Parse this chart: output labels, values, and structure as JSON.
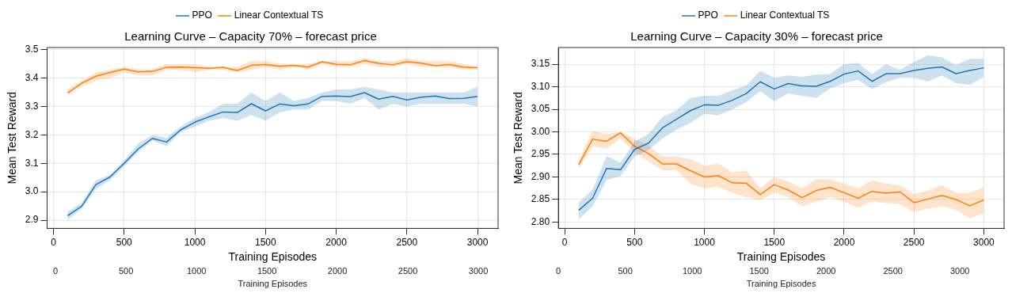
{
  "chart_data": [
    {
      "type": "line",
      "title": "Learning Curve – Capacity 70% – forecast price",
      "xlabel": "Training Episodes",
      "ylabel": "Mean Test Reward",
      "x2label": "Training Episodes",
      "x": [
        100,
        200,
        300,
        400,
        500,
        600,
        700,
        800,
        900,
        1000,
        1100,
        1200,
        1300,
        1400,
        1500,
        1600,
        1700,
        1800,
        1900,
        2000,
        2100,
        2200,
        2300,
        2400,
        2500,
        2600,
        2700,
        2800,
        2900,
        3000
      ],
      "series": [
        {
          "name": "PPO",
          "color": "#1f77b4",
          "values": [
            2.916,
            2.949,
            3.025,
            3.052,
            3.1,
            3.151,
            3.188,
            3.175,
            3.218,
            3.245,
            3.264,
            3.281,
            3.279,
            3.31,
            3.285,
            3.309,
            3.303,
            3.309,
            3.336,
            3.337,
            3.335,
            3.349,
            3.326,
            3.336,
            3.323,
            3.333,
            3.337,
            3.328,
            3.329,
            3.336
          ],
          "lower": [
            2.9,
            2.94,
            3.01,
            3.04,
            3.09,
            3.14,
            3.18,
            3.16,
            3.21,
            3.23,
            3.25,
            3.26,
            3.25,
            3.27,
            3.25,
            3.28,
            3.29,
            3.29,
            3.32,
            3.32,
            3.31,
            3.33,
            3.29,
            3.31,
            3.3,
            3.31,
            3.31,
            3.31,
            3.31,
            3.3
          ],
          "upper": [
            2.93,
            2.96,
            3.04,
            3.06,
            3.11,
            3.17,
            3.2,
            3.19,
            3.23,
            3.26,
            3.28,
            3.31,
            3.31,
            3.35,
            3.32,
            3.35,
            3.32,
            3.33,
            3.35,
            3.36,
            3.36,
            3.37,
            3.36,
            3.35,
            3.35,
            3.35,
            3.35,
            3.35,
            3.35,
            3.37
          ]
        },
        {
          "name": "Linear Contextual TS",
          "color": "#ff7f0e",
          "values": [
            3.348,
            3.382,
            3.407,
            3.42,
            3.432,
            3.422,
            3.424,
            3.438,
            3.439,
            3.437,
            3.435,
            3.438,
            3.427,
            3.445,
            3.448,
            3.442,
            3.445,
            3.439,
            3.458,
            3.449,
            3.447,
            3.462,
            3.452,
            3.447,
            3.458,
            3.453,
            3.444,
            3.448,
            3.439,
            3.437
          ],
          "lower": [
            3.34,
            3.37,
            3.39,
            3.4,
            3.42,
            3.41,
            3.41,
            3.43,
            3.43,
            3.42,
            3.43,
            3.43,
            3.42,
            3.43,
            3.44,
            3.43,
            3.44,
            3.43,
            3.45,
            3.44,
            3.44,
            3.45,
            3.44,
            3.44,
            3.45,
            3.44,
            3.44,
            3.44,
            3.43,
            3.43
          ],
          "upper": [
            3.36,
            3.39,
            3.42,
            3.43,
            3.44,
            3.43,
            3.43,
            3.45,
            3.45,
            3.45,
            3.44,
            3.44,
            3.44,
            3.46,
            3.46,
            3.45,
            3.45,
            3.45,
            3.46,
            3.46,
            3.46,
            3.47,
            3.46,
            3.46,
            3.47,
            3.46,
            3.46,
            3.46,
            3.45,
            3.44
          ]
        }
      ],
      "xlim": [
        -45,
        3145
      ],
      "xticks": [
        0,
        500,
        1000,
        1500,
        2000,
        2500,
        3000
      ],
      "x2lim": [
        -60,
        3140
      ],
      "x2ticks": [
        0,
        500,
        1000,
        1500,
        2000,
        2500,
        3000
      ],
      "ylim": [
        2.871,
        3.508
      ],
      "yticks": [
        2.9,
        {
          "value": 3,
          "label": "3.0"
        },
        3.1,
        3.2,
        3.3,
        3.4,
        3.5
      ],
      "grid": true,
      "legend": "top",
      "marker": "none",
      "line_style": "solid"
    },
    {
      "type": "line",
      "title": "Learning Curve – Capacity 30% – forecast price",
      "xlabel": "Training Episodes",
      "ylabel": "Mean Test Reward",
      "x2label": "Training Episodes",
      "x": [
        100,
        200,
        300,
        400,
        500,
        600,
        700,
        800,
        900,
        1000,
        1100,
        1200,
        1300,
        1400,
        1500,
        1600,
        1700,
        1800,
        1900,
        2000,
        2100,
        2200,
        2300,
        2400,
        2500,
        2600,
        2700,
        2800,
        2900,
        3000
      ],
      "series": [
        {
          "name": "PPO",
          "color": "#1f77b4",
          "values": [
            2.826,
            2.853,
            2.919,
            2.916,
            2.961,
            2.975,
            3.009,
            3.028,
            3.047,
            3.06,
            3.059,
            3.07,
            3.085,
            3.111,
            3.095,
            3.107,
            3.102,
            3.101,
            3.112,
            3.128,
            3.135,
            3.112,
            3.129,
            3.129,
            3.136,
            3.141,
            3.144,
            3.129,
            3.136,
            3.142
          ],
          "lower": [
            2.806,
            2.835,
            2.893,
            2.902,
            2.945,
            2.96,
            2.985,
            3.005,
            3.02,
            3.04,
            3.037,
            3.05,
            3.066,
            3.09,
            3.068,
            3.085,
            3.08,
            3.075,
            3.096,
            3.108,
            3.115,
            3.095,
            3.11,
            3.12,
            3.12,
            3.112,
            3.125,
            3.108,
            3.104,
            3.122
          ],
          "upper": [
            2.843,
            2.872,
            2.946,
            2.932,
            2.978,
            2.995,
            3.033,
            3.048,
            3.075,
            3.08,
            3.08,
            3.092,
            3.103,
            3.135,
            3.12,
            3.125,
            3.122,
            3.127,
            3.128,
            3.15,
            3.153,
            3.128,
            3.15,
            3.138,
            3.155,
            3.17,
            3.165,
            3.148,
            3.162,
            3.162
          ]
        },
        {
          "name": "Linear Contextual TS",
          "color": "#ff7f0e",
          "values": [
            2.927,
            2.984,
            2.979,
            2.998,
            2.968,
            2.952,
            2.929,
            2.929,
            2.914,
            2.9,
            2.903,
            2.887,
            2.886,
            2.861,
            2.883,
            2.871,
            2.854,
            2.87,
            2.877,
            2.865,
            2.853,
            2.868,
            2.864,
            2.867,
            2.843,
            2.851,
            2.859,
            2.85,
            2.836,
            2.849
          ],
          "lower": [
            2.918,
            2.968,
            2.963,
            2.985,
            2.955,
            2.935,
            2.915,
            2.915,
            2.885,
            2.875,
            2.878,
            2.865,
            2.855,
            2.848,
            2.865,
            2.855,
            2.835,
            2.845,
            2.855,
            2.845,
            2.832,
            2.845,
            2.842,
            2.84,
            2.822,
            2.83,
            2.835,
            2.828,
            2.808,
            2.82
          ],
          "upper": [
            2.935,
            3.002,
            2.995,
            3.0,
            2.985,
            2.97,
            2.945,
            2.945,
            2.94,
            2.925,
            2.93,
            2.91,
            2.915,
            2.875,
            2.9,
            2.89,
            2.875,
            2.895,
            2.895,
            2.885,
            2.875,
            2.893,
            2.885,
            2.882,
            2.862,
            2.87,
            2.882,
            2.865,
            2.865,
            2.877
          ]
        }
      ],
      "xlim": [
        -45,
        3145
      ],
      "xticks": [
        0,
        500,
        1000,
        1500,
        2000,
        2500,
        3000
      ],
      "x2lim": [
        0,
        3330
      ],
      "x2ticks": [
        0,
        500,
        1000,
        1500,
        2000,
        2500,
        3000
      ],
      "ylim": [
        2.786,
        3.187
      ],
      "yticks": [
        {
          "value": 2.8,
          "label": "2.80"
        },
        2.85,
        {
          "value": 2.9,
          "label": "2.90"
        },
        2.95,
        {
          "value": 3,
          "label": "3.00"
        },
        3.05,
        {
          "value": 3.1,
          "label": "3.10"
        },
        3.15
      ],
      "grid": true,
      "legend": "top",
      "marker": "none",
      "line_style": "solid"
    }
  ]
}
